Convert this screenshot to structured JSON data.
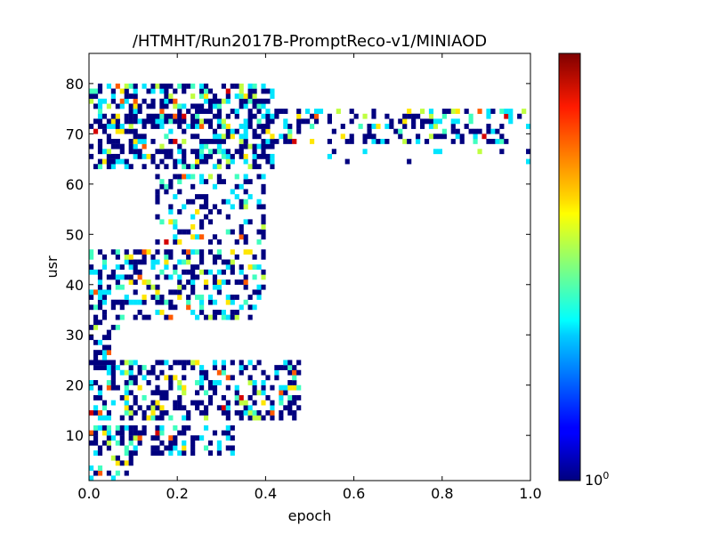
{
  "chart_data": {
    "type": "heatmap",
    "title": "/HTMHT/Run2017B-PromptReco-v1/MINIAOD",
    "xlabel": "epoch",
    "ylabel": "usr",
    "xlim": [
      0.0,
      1.0
    ],
    "ylim": [
      1,
      86
    ],
    "x_ticks": [
      "0.0",
      "0.2",
      "0.4",
      "0.6",
      "0.8",
      "1.0"
    ],
    "y_ticks": [
      "10",
      "20",
      "30",
      "40",
      "50",
      "60",
      "70",
      "80"
    ],
    "colorbar": {
      "scale": "log",
      "colormap": "jet",
      "tick_label_base": "10",
      "tick_label_exp": "0"
    },
    "grid": false,
    "bin_grid": {
      "x_bins": 100,
      "y_bins": 85
    },
    "clusters": [
      {
        "x_range": [
          0.0,
          0.42
        ],
        "y_range": [
          63,
          80
        ],
        "density": 0.55
      },
      {
        "x_range": [
          0.42,
          1.0
        ],
        "y_range": [
          68,
          75
        ],
        "density": 0.35
      },
      {
        "x_range": [
          0.52,
          1.0
        ],
        "y_range": [
          64,
          67
        ],
        "density": 0.08
      },
      {
        "x_range": [
          0.15,
          0.4
        ],
        "y_range": [
          48,
          62
        ],
        "density": 0.3
      },
      {
        "x_range": [
          0.0,
          0.4
        ],
        "y_range": [
          33,
          47
        ],
        "density": 0.45
      },
      {
        "x_range": [
          0.0,
          0.07
        ],
        "y_range": [
          24,
          33
        ],
        "density": 0.35
      },
      {
        "x_range": [
          0.0,
          0.48
        ],
        "y_range": [
          13,
          25
        ],
        "density": 0.45
      },
      {
        "x_range": [
          0.0,
          0.33
        ],
        "y_range": [
          6,
          12
        ],
        "density": 0.45
      },
      {
        "x_range": [
          0.0,
          0.1
        ],
        "y_range": [
          1,
          6
        ],
        "density": 0.25
      }
    ]
  }
}
